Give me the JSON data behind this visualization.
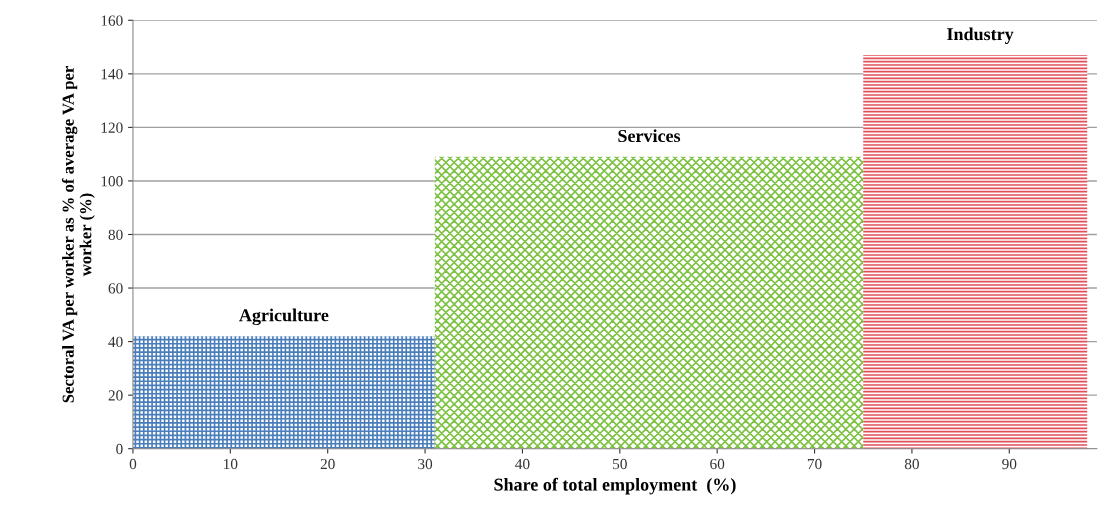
{
  "chart_data": {
    "type": "histogram",
    "bins": [
      0,
      31,
      75,
      98
    ],
    "values": [
      42,
      109,
      147
    ],
    "colors": [
      "#4a7ebb",
      "#7dc242",
      "#e0505a"
    ],
    "xlabel": "Share of total employment  (%)",
    "ylabel": "Sectoral VA per worker as % of average VA per\nworker (%)",
    "xlim": [
      0,
      99
    ],
    "xticks": [
      0,
      10,
      20,
      30,
      40,
      50,
      60,
      70,
      80,
      90
    ],
    "ylim": [
      0,
      160
    ],
    "yticks": [
      0,
      20,
      40,
      60,
      80,
      100,
      120,
      140,
      160
    ],
    "grid": "y",
    "annotations": [
      {
        "text": "Agriculture",
        "x": 15.5,
        "y": 42
      },
      {
        "text": "Services",
        "x": 53,
        "y": 109
      },
      {
        "text": "Industry",
        "x": 87,
        "y": 147
      }
    ]
  }
}
